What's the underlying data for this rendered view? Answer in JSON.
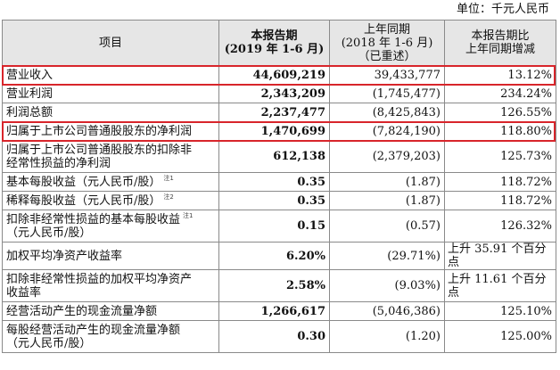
{
  "unit": "单位：千元人民币",
  "headers": {
    "item": "项目",
    "current": [
      "本报告期",
      "(2019 年 1-6 月)"
    ],
    "previous": [
      "上年同期",
      "(2018 年 1-6 月)",
      "（已重述）"
    ],
    "change": [
      "本报告期比",
      "上年同期增减"
    ]
  },
  "rows": [
    {
      "item": [
        "营业收入"
      ],
      "current": "44,609,219",
      "previous": "39,433,777",
      "change": "13.12%",
      "highlight": true
    },
    {
      "item": [
        "营业利润"
      ],
      "current": "2,343,209",
      "previous": "(1,745,477)",
      "change": "234.24%"
    },
    {
      "item": [
        "利润总额"
      ],
      "current": "2,237,477",
      "previous": "(8,425,843)",
      "change": "126.55%"
    },
    {
      "item": [
        "归属于上市公司普通股股东的净利润"
      ],
      "current": "1,470,699",
      "previous": "(7,824,190)",
      "change": "118.80%",
      "highlight": true
    },
    {
      "item": [
        "归属于上市公司普通股股东的扣除非",
        "经常性损益的净利润"
      ],
      "current": "612,138",
      "previous": "(2,379,203)",
      "change": "125.73%"
    },
    {
      "item": [
        "基本每股收益（元人民币/股）"
      ],
      "note": "注1",
      "current": "0.35",
      "previous": "(1.87)",
      "change": "118.72%"
    },
    {
      "item": [
        "稀释每股收益（元人民币/股）"
      ],
      "note": "注2",
      "current": "0.35",
      "previous": "(1.87)",
      "change": "118.72%"
    },
    {
      "item": [
        "扣除非经常性损益的基本每股收益",
        "（元人民币/股）"
      ],
      "note": "注1",
      "current": "0.15",
      "previous": "(0.57)",
      "change": "126.32%"
    },
    {
      "item": [
        "加权平均净资产收益率"
      ],
      "current": "6.20%",
      "previous": "(29.71%)",
      "change": "上升 35.91 个百分点",
      "change_align": "left"
    },
    {
      "item": [
        "扣除非经常性损益的加权平均净资产",
        "收益率"
      ],
      "current": "2.58%",
      "previous": "(9.03%)",
      "change": "上升 11.61 个百分点",
      "change_align": "left"
    },
    {
      "item": [
        "经营活动产生的现金流量净额"
      ],
      "current": "1,266,617",
      "previous": "(5,046,386)",
      "change": "125.10%"
    },
    {
      "item": [
        "每股经营活动产生的现金流量净额",
        "（元人民币/股）"
      ],
      "current": "0.30",
      "previous": "(1.20)",
      "change": "125.00%"
    }
  ],
  "colors": {
    "highlight_border": "#d8252b",
    "header_bg": "#e6e6e6",
    "grid": "#8a8a8a"
  }
}
